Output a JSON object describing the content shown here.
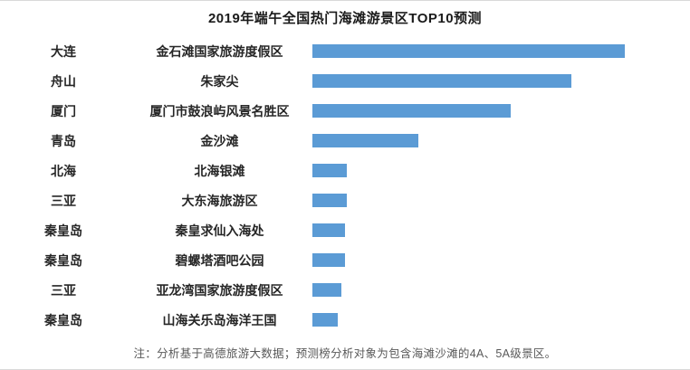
{
  "chart_data": {
    "type": "bar",
    "orientation": "horizontal",
    "title": "2019年端午全国热门海滩游景区TOP10预测",
    "categories": [
      "大连",
      "舟山",
      "厦门",
      "青岛",
      "北海",
      "三亚",
      "秦皇岛",
      "秦皇岛",
      "三亚",
      "秦皇岛"
    ],
    "labels": [
      "金石滩国家旅游度假区",
      "朱家尖",
      "厦门市鼓浪屿风景名胜区",
      "金沙滩",
      "北海银滩",
      "大东海旅游区",
      "秦皇求仙入海处",
      "碧螺塔酒吧公园",
      "亚龙湾国家旅游度假区",
      "山海关乐岛海洋王国"
    ],
    "values": [
      100,
      83,
      63.5,
      34,
      11,
      11,
      10.3,
      10.3,
      9.4,
      8.2
    ],
    "value_unit": "relative-heat-index (no numeric axis shown)",
    "bar_color": "#5b9bd5",
    "legend_position": "none",
    "grid": false,
    "note": "注：分析基于高德旅游大数据；预测榜分析对象为包含海滩沙滩的4A、5A级景区。"
  }
}
